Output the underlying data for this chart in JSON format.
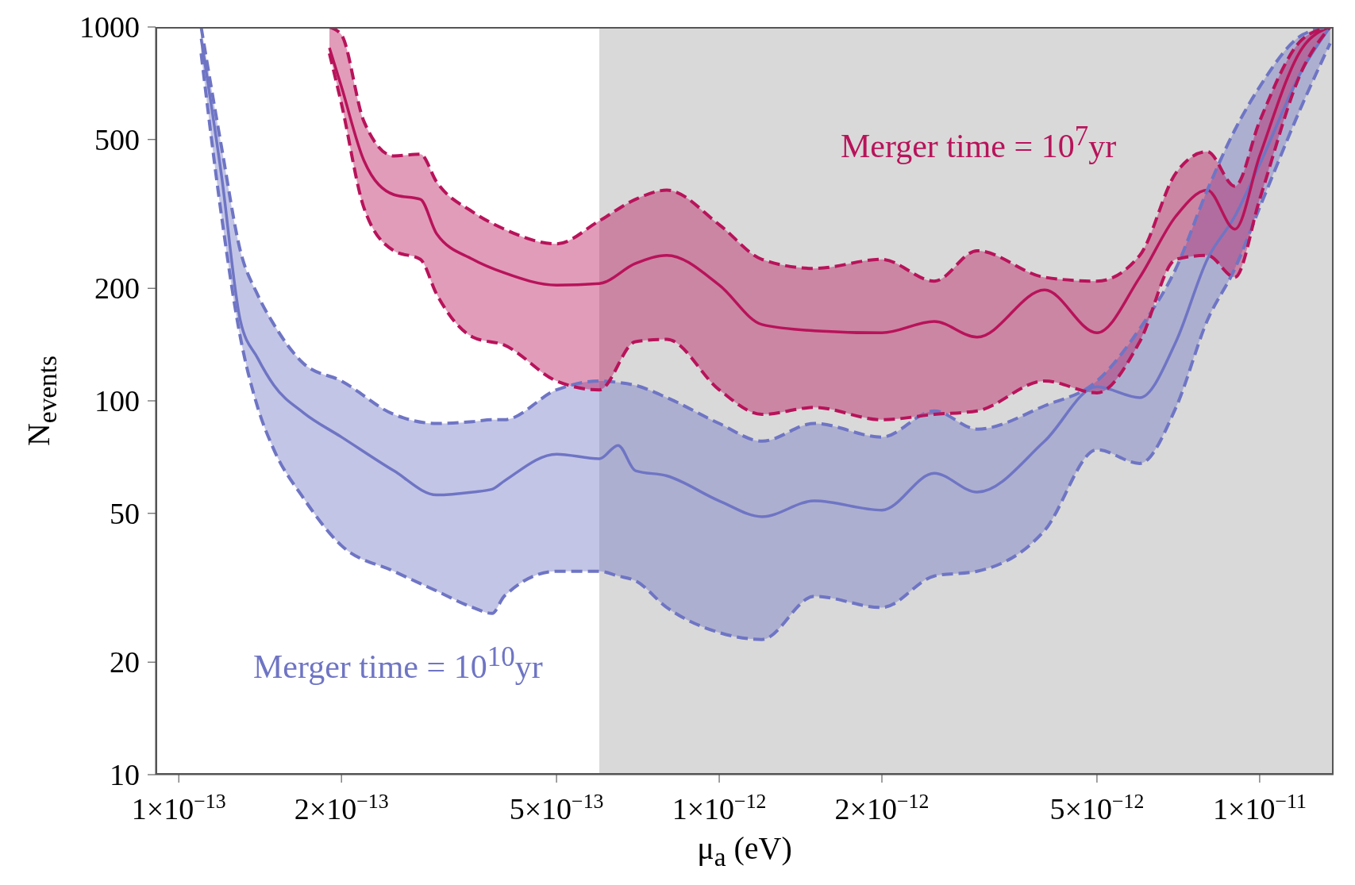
{
  "chart_data": {
    "type": "line",
    "xlabel": "μ$_{a}$ (eV)",
    "ylabel": "N$_{events}$",
    "log": "xy",
    "xlim": [
      9.06e-14,
      1.37e-11
    ],
    "ylim": [
      10,
      1000
    ],
    "xticks": [
      {
        "value": 1e-13,
        "label": "1×10$^{−13}$"
      },
      {
        "value": 2e-13,
        "label": "2×10$^{−13}$"
      },
      {
        "value": 5e-13,
        "label": "5×10$^{−13}$"
      },
      {
        "value": 1e-12,
        "label": "1×10$^{−12}$"
      },
      {
        "value": 2e-12,
        "label": "2×10$^{−12}$"
      },
      {
        "value": 5e-12,
        "label": "5×10$^{−12}$"
      },
      {
        "value": 1e-11,
        "label": "1×10$^{−11}$"
      }
    ],
    "yticks": [
      10,
      20,
      50,
      100,
      200,
      500,
      1000
    ],
    "bands": [
      {
        "axis": "x",
        "from": 6e-13,
        "to": 1.37e-11,
        "color": "#d9d9d9"
      }
    ],
    "series": [
      {
        "name": "Merger time = 10$^{10}$yr",
        "color": "#6f75c4",
        "x": [
          1.1e-13,
          1.2e-13,
          1.3e-13,
          1.4e-13,
          1.5e-13,
          1.7e-13,
          2e-13,
          2.5e-13,
          3e-13,
          3.5e-13,
          3.8e-13,
          4e-13,
          5e-13,
          6e-13,
          6.5e-13,
          7e-13,
          8e-13,
          1e-12,
          1.2e-12,
          1.5e-12,
          2e-12,
          2.5e-12,
          3e-12,
          4e-12,
          5e-12,
          6e-12,
          7e-12,
          8e-12,
          9e-12,
          1e-11,
          1.2e-11,
          1.35e-11
        ],
        "values": [
          930,
          400,
          164,
          130,
          110,
          93,
          80,
          65,
          56,
          57,
          58,
          61,
          72,
          70,
          76,
          65,
          63,
          54,
          49,
          54,
          51,
          64,
          57,
          78,
          109,
          102,
          144,
          239,
          312,
          429,
          770,
          1000
        ],
        "upper": [
          1000,
          477,
          252,
          192,
          160,
          126,
          113,
          92,
          87,
          88,
          89,
          89,
          107,
          113,
          112,
          110,
          102,
          87,
          78,
          87,
          80,
          94,
          84,
          97,
          113,
          156,
          226,
          366,
          531,
          692,
          953,
          1000
        ],
        "lower": [
          850,
          312,
          148,
          96,
          74,
          55,
          41,
          35,
          31,
          28,
          27,
          30,
          35,
          35,
          34,
          33,
          28,
          24,
          23,
          30,
          28,
          34,
          35,
          45,
          74,
          68,
          96,
          164,
          226,
          329,
          622,
          904
        ]
      },
      {
        "name": "Merger time = 10$^{7}$yr",
        "color": "#b8135a",
        "x": [
          1.9e-13,
          2e-13,
          2.2e-13,
          2.5e-13,
          2.8e-13,
          3e-13,
          3.5e-13,
          4e-13,
          5e-13,
          6e-13,
          7e-13,
          8e-13,
          1e-12,
          1.2e-12,
          1.5e-12,
          2e-12,
          2.5e-12,
          3e-12,
          4e-12,
          5e-12,
          6e-12,
          7e-12,
          8e-12,
          9e-12,
          1e-11,
          1.2e-11,
          1.35e-11
        ],
        "values": [
          880,
          692,
          440,
          356,
          346,
          280,
          239,
          220,
          204,
          206,
          233,
          245,
          204,
          160,
          154,
          152,
          163,
          148,
          198,
          152,
          214,
          312,
          366,
          288,
          452,
          880,
          1000
        ],
        "upper": [
          1000,
          953,
          560,
          452,
          457,
          385,
          320,
          288,
          263,
          303,
          346,
          366,
          296,
          239,
          226,
          239,
          209,
          252,
          214,
          209,
          245,
          407,
          464,
          375,
          560,
          928,
          1000
        ],
        "lower": [
          850,
          623,
          329,
          252,
          239,
          193,
          148,
          141,
          113,
          107,
          144,
          146,
          107,
          92,
          96,
          89,
          92,
          94,
          113,
          105,
          144,
          239,
          245,
          214,
          346,
          770,
          1000
        ]
      },
      {
        "type": "line",
        "line_style": "dashed",
        "color": "#6f75c4",
        "x": [
          1.1e-13,
          1.2e-13,
          1.3e-13,
          1.4e-13,
          1.5e-13,
          1.7e-13,
          2e-13,
          2.5e-13,
          3e-13,
          3.5e-13,
          3.8e-13,
          4e-13,
          5e-13,
          6e-13,
          6.5e-13,
          7e-13,
          8e-13,
          1e-12,
          1.2e-12,
          1.5e-12,
          2e-12,
          2.5e-12,
          3e-12,
          4e-12,
          5e-12,
          6e-12,
          7e-12,
          8e-12,
          9e-12,
          1e-11,
          1.2e-11,
          1.35e-11
        ],
        "values": [
          1000,
          477,
          252,
          192,
          160,
          126,
          113,
          92,
          87,
          88,
          89,
          89,
          107,
          113,
          112,
          110,
          102,
          87,
          78,
          87,
          80,
          94,
          84,
          97,
          113,
          156,
          226,
          366,
          531,
          692,
          953,
          1000
        ]
      },
      {
        "type": "line",
        "line_style": "dashed",
        "color": "#6f75c4",
        "x": [
          1.1e-13,
          1.2e-13,
          1.3e-13,
          1.4e-13,
          1.5e-13,
          1.7e-13,
          2e-13,
          2.5e-13,
          3e-13,
          3.5e-13,
          3.8e-13,
          4e-13,
          5e-13,
          6e-13,
          6.5e-13,
          7e-13,
          8e-13,
          1e-12,
          1.2e-12,
          1.5e-12,
          2e-12,
          2.5e-12,
          3e-12,
          4e-12,
          5e-12,
          6e-12,
          7e-12,
          8e-12,
          9e-12,
          1e-11,
          1.2e-11,
          1.35e-11
        ],
        "values": [
          850,
          312,
          148,
          96,
          74,
          55,
          41,
          35,
          31,
          28,
          27,
          30,
          35,
          35,
          34,
          33,
          28,
          24,
          23,
          30,
          28,
          34,
          35,
          45,
          74,
          68,
          96,
          164,
          226,
          329,
          622,
          904
        ]
      },
      {
        "type": "line",
        "line_style": "dashed",
        "color": "#b8135a",
        "x": [
          1.9e-13,
          2e-13,
          2.2e-13,
          2.5e-13,
          2.8e-13,
          3e-13,
          3.5e-13,
          4e-13,
          5e-13,
          6e-13,
          7e-13,
          8e-13,
          1e-12,
          1.2e-12,
          1.5e-12,
          2e-12,
          2.5e-12,
          3e-12,
          4e-12,
          5e-12,
          6e-12,
          7e-12,
          8e-12,
          9e-12,
          1e-11,
          1.2e-11,
          1.35e-11
        ],
        "values": [
          1000,
          953,
          560,
          452,
          457,
          385,
          320,
          288,
          263,
          303,
          346,
          366,
          296,
          239,
          226,
          239,
          209,
          252,
          214,
          209,
          245,
          407,
          464,
          375,
          560,
          928,
          1000
        ]
      },
      {
        "type": "line",
        "line_style": "dashed",
        "color": "#b8135a",
        "x": [
          1.9e-13,
          2e-13,
          2.2e-13,
          2.5e-13,
          2.8e-13,
          3e-13,
          3.5e-13,
          4e-13,
          5e-13,
          6e-13,
          7e-13,
          8e-13,
          1e-12,
          1.2e-12,
          1.5e-12,
          2e-12,
          2.5e-12,
          3e-12,
          4e-12,
          5e-12,
          6e-12,
          7e-12,
          8e-12,
          9e-12,
          1e-11,
          1.2e-11,
          1.35e-11
        ],
        "values": [
          850,
          623,
          329,
          252,
          239,
          193,
          148,
          141,
          113,
          107,
          144,
          146,
          107,
          92,
          96,
          89,
          92,
          94,
          113,
          105,
          144,
          239,
          245,
          214,
          346,
          770,
          1000
        ]
      }
    ]
  }
}
